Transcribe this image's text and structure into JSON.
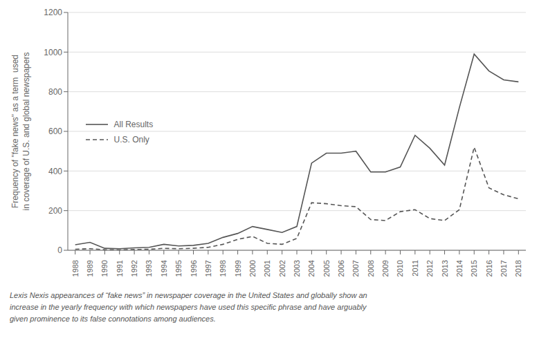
{
  "chart_data": {
    "type": "line",
    "x": [
      1988,
      1989,
      1990,
      1991,
      1992,
      1993,
      1994,
      1995,
      1996,
      1997,
      1998,
      1999,
      2000,
      2001,
      2002,
      2003,
      2004,
      2005,
      2006,
      2007,
      2008,
      2009,
      2010,
      2011,
      2012,
      2013,
      2014,
      2015,
      2016,
      2017,
      2018
    ],
    "series": [
      {
        "name": "All Results",
        "color": "#555555",
        "line_style": "solid",
        "values": [
          28,
          40,
          10,
          8,
          12,
          15,
          30,
          22,
          25,
          35,
          65,
          85,
          120,
          105,
          90,
          120,
          440,
          490,
          490,
          500,
          395,
          395,
          420,
          580,
          515,
          430,
          720,
          990,
          905,
          860,
          850
        ]
      },
      {
        "name": "U.S. Only",
        "color": "#555555",
        "line_style": "dashed",
        "values": [
          5,
          8,
          3,
          2,
          4,
          5,
          10,
          8,
          10,
          15,
          30,
          55,
          70,
          35,
          30,
          60,
          240,
          235,
          225,
          220,
          155,
          150,
          195,
          205,
          160,
          150,
          205,
          520,
          315,
          280,
          260
        ]
      }
    ],
    "ylabel": "Frequency of \"fake news\" as a term  used\nin coverage of U.S. and global newspapers",
    "caption": "Lexis Nexis appearances of “fake news” in newspaper coverage in the United States and globally show an\nincrease in the yearly frequency with which newspapers have used this specific phrase and have arguably\ngiven prominence to its false connotations among audiences.",
    "xlim": [
      1987.5,
      2018.5
    ],
    "xticks": [
      1988,
      1989,
      1990,
      1991,
      1992,
      1993,
      1994,
      1995,
      1996,
      1997,
      1998,
      1999,
      2000,
      2001,
      2002,
      2003,
      2004,
      2005,
      2006,
      2007,
      2008,
      2009,
      2010,
      2011,
      2012,
      2013,
      2014,
      2015,
      2016,
      2017,
      2018
    ],
    "ylim": [
      0,
      1200
    ],
    "yticks": [
      0,
      200,
      400,
      600,
      800,
      1000,
      1200
    ],
    "grid": true,
    "legend": "center left"
  }
}
